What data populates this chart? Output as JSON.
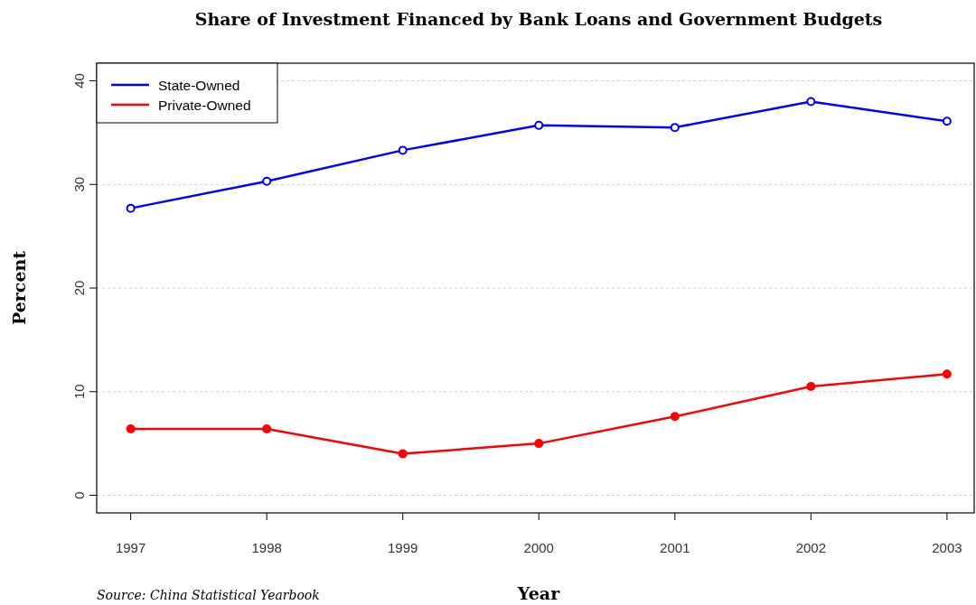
{
  "chart_data": {
    "type": "line",
    "title": "Share of Investment Financed by Bank Loans and Government Budgets",
    "xlabel": "Year",
    "ylabel": "Percent",
    "annotations": [
      "Source: China Statistical Yearbook"
    ],
    "x": [
      1997,
      1998,
      1999,
      2000,
      2001,
      2002,
      2003
    ],
    "series": [
      {
        "name": "State-Owned",
        "color": "#0000ff",
        "values": [
          27.7,
          30.3,
          33.3,
          35.7,
          35.5,
          38.0,
          36.1
        ]
      },
      {
        "name": "Private-Owned",
        "color": "#ff0000",
        "values": [
          6.4,
          6.4,
          4.0,
          5.0,
          7.6,
          10.5,
          11.7
        ]
      }
    ],
    "xlim": [
      1996.75,
      2003.2
    ],
    "xticks": [
      1997,
      1998,
      1999,
      2000,
      2001,
      2002,
      2003
    ],
    "ylim": [
      -1.7,
      41.7
    ],
    "yticks": [
      0,
      10,
      20,
      30,
      40
    ],
    "grid": "y",
    "legend": "top left",
    "marker": "circle",
    "line_style": "solid"
  }
}
